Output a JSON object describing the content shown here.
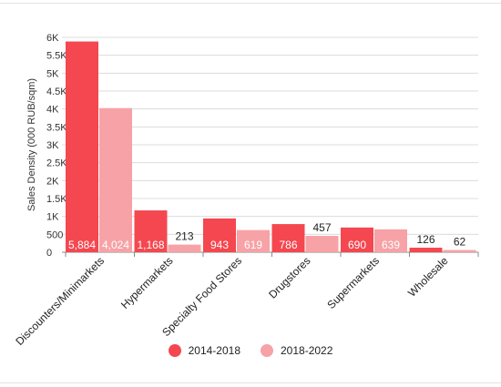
{
  "chart_data": {
    "type": "bar",
    "ylabel": "Sales Density (000 RUB/sqm)",
    "ylim": [
      0,
      6000
    ],
    "y_ticks": [
      "0",
      "500",
      "1K",
      "1.5K",
      "2K",
      "2.5K",
      "3K",
      "3.5K",
      "4K",
      "4.5K",
      "5K",
      "5.5K",
      "6K"
    ],
    "y_tick_values": [
      0,
      500,
      1000,
      1500,
      2000,
      2500,
      3000,
      3500,
      4000,
      4500,
      5000,
      5500,
      6000
    ],
    "categories": [
      "Discounters/Minimarkets",
      "Hypermarkets",
      "Specialty Food Stores",
      "Drugstores",
      "Supermarkets",
      "Wholesale"
    ],
    "series": [
      {
        "name": "2014-2018",
        "color": "#f4474f",
        "values": [
          5884,
          1168,
          943,
          786,
          690,
          126
        ],
        "labels": [
          "5,884",
          "1,168",
          "943",
          "786",
          "690",
          "126"
        ]
      },
      {
        "name": "2018-2022",
        "color": "#f7a2a6",
        "values": [
          4024,
          213,
          619,
          457,
          639,
          62
        ],
        "labels": [
          "4,024",
          "213",
          "619",
          "457",
          "639",
          "62"
        ]
      }
    ],
    "grid": true,
    "legend_position": "bottom"
  }
}
